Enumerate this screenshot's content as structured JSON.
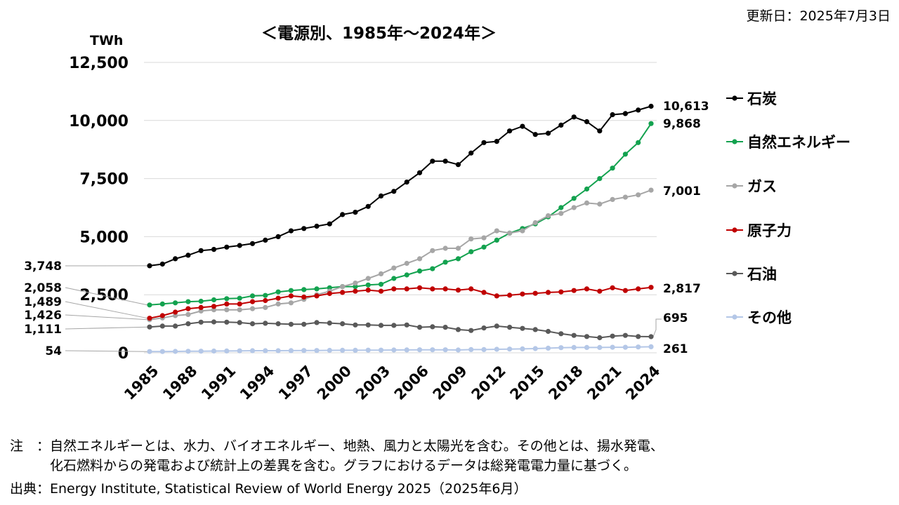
{
  "updated": "更新日：2025年7月3日",
  "note_line1": "注　：自然エネルギーとは、水力、バイオエネルギー、地熱、風力と太陽光を含む。その他とは、揚水発電、",
  "note_line2": "　　　化石燃料からの発電および統計上の差異を含む。グラフにおけるデータは総発電電力量に基づく。",
  "source": "出典：Energy Institute, Statistical Review of World Energy 2025（2025年6月）",
  "colors": {
    "coal": "#000000",
    "renewables": "#13a24f",
    "gas": "#a6a6a6",
    "nuclear": "#c00000",
    "oil": "#595959",
    "other": "#b4c7e7"
  },
  "chart_data": {
    "type": "line",
    "title": "＜電源別、1985年～2024年＞",
    "ylabel": "TWh",
    "ylim": [
      0,
      12500
    ],
    "yticks": [
      "0",
      "2,500",
      "5,000",
      "7,500",
      "10,000",
      "12,500"
    ],
    "ytick_values": [
      0,
      2500,
      5000,
      7500,
      10000,
      12500
    ],
    "xticks": [
      "1985",
      "1988",
      "1991",
      "1994",
      "1997",
      "2000",
      "2003",
      "2006",
      "2009",
      "2012",
      "2015",
      "2018",
      "2021",
      "2024"
    ],
    "x_start": 1985,
    "x_end": 2024,
    "grid": true,
    "legend_position": "right",
    "series": [
      {
        "key": "coal",
        "name": "石炭",
        "start_label": "3,748",
        "end_label": "10,613",
        "values": [
          3748,
          3820,
          4050,
          4200,
          4400,
          4450,
          4550,
          4620,
          4700,
          4850,
          5000,
          5250,
          5350,
          5450,
          5550,
          5950,
          6050,
          6300,
          6750,
          6950,
          7350,
          7750,
          8250,
          8250,
          8100,
          8600,
          9050,
          9100,
          9550,
          9750,
          9400,
          9450,
          9800,
          10150,
          9950,
          9550,
          10250,
          10300,
          10450,
          10613
        ]
      },
      {
        "key": "renewables",
        "name": "自然エネルギー",
        "start_label": "2,058",
        "end_label": "9,868",
        "values": [
          2058,
          2100,
          2150,
          2200,
          2220,
          2280,
          2330,
          2350,
          2450,
          2470,
          2620,
          2680,
          2720,
          2750,
          2800,
          2850,
          2850,
          2920,
          2950,
          3200,
          3350,
          3520,
          3620,
          3900,
          4050,
          4350,
          4550,
          4850,
          5150,
          5350,
          5550,
          5850,
          6250,
          6650,
          7050,
          7500,
          7950,
          8550,
          9050,
          9868
        ]
      },
      {
        "key": "gas",
        "name": "ガス",
        "start_label": "1,426",
        "end_label": "7,001",
        "values": [
          1426,
          1500,
          1600,
          1650,
          1800,
          1850,
          1850,
          1850,
          1900,
          1950,
          2100,
          2150,
          2300,
          2500,
          2650,
          2850,
          3000,
          3200,
          3400,
          3650,
          3850,
          4050,
          4400,
          4500,
          4500,
          4900,
          4950,
          5250,
          5150,
          5250,
          5600,
          5900,
          6000,
          6250,
          6450,
          6400,
          6600,
          6700,
          6800,
          7001
        ]
      },
      {
        "key": "nuclear",
        "name": "原子力",
        "start_label": "1,489",
        "end_label": "2,817",
        "values": [
          1489,
          1600,
          1750,
          1900,
          1950,
          2000,
          2100,
          2100,
          2200,
          2250,
          2350,
          2450,
          2400,
          2450,
          2550,
          2600,
          2650,
          2700,
          2650,
          2750,
          2750,
          2800,
          2750,
          2750,
          2700,
          2750,
          2600,
          2450,
          2480,
          2530,
          2560,
          2600,
          2620,
          2680,
          2750,
          2650,
          2800,
          2680,
          2750,
          2817
        ]
      },
      {
        "key": "oil",
        "name": "石油",
        "start_label": "1,111",
        "end_label": "695",
        "values": [
          1111,
          1150,
          1150,
          1250,
          1320,
          1330,
          1320,
          1300,
          1250,
          1270,
          1250,
          1230,
          1230,
          1300,
          1280,
          1250,
          1200,
          1200,
          1180,
          1180,
          1200,
          1100,
          1120,
          1100,
          1000,
          960,
          1070,
          1150,
          1100,
          1050,
          1000,
          920,
          820,
          750,
          700,
          650,
          720,
          750,
          700,
          695
        ]
      },
      {
        "key": "other",
        "name": "その他",
        "start_label": "54",
        "end_label": "261",
        "values": [
          54,
          55,
          60,
          65,
          70,
          75,
          80,
          85,
          90,
          90,
          90,
          95,
          100,
          100,
          105,
          110,
          110,
          115,
          115,
          120,
          125,
          130,
          130,
          130,
          120,
          140,
          140,
          150,
          160,
          170,
          180,
          200,
          220,
          230,
          230,
          230,
          240,
          240,
          250,
          261
        ]
      }
    ]
  }
}
